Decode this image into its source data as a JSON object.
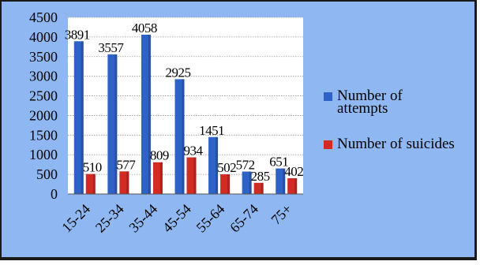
{
  "chart_data": {
    "type": "bar",
    "title": "",
    "xlabel": "",
    "ylabel": "",
    "categories": [
      "15-24",
      "25-34",
      "35-44",
      "45-54",
      "55-64",
      "65-74",
      "75+"
    ],
    "series": [
      {
        "name": "Number of attempts",
        "values": [
          3891,
          3557,
          4058,
          2925,
          1451,
          572,
          651
        ],
        "color": "#2e62c7"
      },
      {
        "name": "Number of suicides",
        "values": [
          510,
          577,
          809,
          934,
          502,
          285,
          402
        ],
        "color": "#d12b24"
      }
    ],
    "ylim": [
      0,
      4500
    ],
    "yticks": [
      0,
      500,
      1000,
      1500,
      2000,
      2500,
      3000,
      3500,
      4000,
      4500
    ],
    "grid": true,
    "legend_position": "right",
    "legend": {
      "entries": [
        {
          "lines": [
            "Number of",
            "attempts"
          ]
        },
        {
          "lines": [
            "Number of suicides"
          ]
        }
      ]
    },
    "plot_background": "#ffffff",
    "chart_background": "#8fb8f2"
  }
}
